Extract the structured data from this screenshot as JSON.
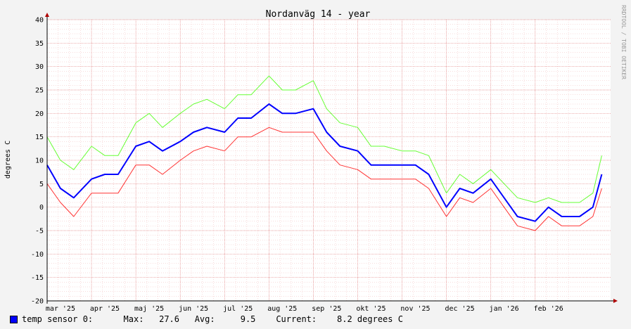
{
  "chart_data": {
    "type": "line",
    "title": "Nordanväg 14 - year",
    "ylabel": "degrees C",
    "watermark": "RRDTOOL / TOBI OETIKER",
    "ylim": [
      -20,
      40
    ],
    "y_ticks": [
      -20,
      -15,
      -10,
      -5,
      0,
      5,
      10,
      15,
      20,
      25,
      30,
      35,
      40
    ],
    "x_ticks": [
      "mar '25",
      "apr '25",
      "maj '25",
      "jun '25",
      "jul '25",
      "aug '25",
      "sep '25",
      "okt '25",
      "nov '25",
      "dec '25",
      "jan '26",
      "feb '26"
    ],
    "xlim": [
      0,
      12.7
    ],
    "grid": true,
    "colors": {
      "min": "#ff3333",
      "avg": "#0000ff",
      "max": "#66ff33",
      "grid_minor": "#f0b8b8",
      "grid_major": "#e08080"
    },
    "series": [
      {
        "key": "max",
        "x": [
          0,
          0.3,
          0.6,
          1.0,
          1.3,
          1.6,
          2.0,
          2.3,
          2.6,
          3.0,
          3.3,
          3.6,
          4.0,
          4.3,
          4.6,
          5.0,
          5.3,
          5.6,
          6.0,
          6.3,
          6.6,
          7.0,
          7.3,
          7.6,
          8.0,
          8.3,
          8.6,
          9.0,
          9.3,
          9.6,
          10.0,
          10.3,
          10.6,
          11.0,
          11.3,
          11.6,
          12.0,
          12.3,
          12.5
        ],
        "values": [
          15,
          10,
          8,
          13,
          11,
          11,
          18,
          20,
          17,
          20,
          22,
          23,
          21,
          24,
          24,
          28,
          25,
          25,
          27,
          21,
          18,
          17,
          13,
          13,
          12,
          12,
          11,
          3,
          7,
          5,
          8,
          5,
          2,
          1,
          2,
          1,
          1,
          3,
          11
        ]
      },
      {
        "key": "avg",
        "x": [
          0,
          0.3,
          0.6,
          1.0,
          1.3,
          1.6,
          2.0,
          2.3,
          2.6,
          3.0,
          3.3,
          3.6,
          4.0,
          4.3,
          4.6,
          5.0,
          5.3,
          5.6,
          6.0,
          6.3,
          6.6,
          7.0,
          7.3,
          7.6,
          8.0,
          8.3,
          8.6,
          9.0,
          9.3,
          9.6,
          10.0,
          10.3,
          10.6,
          11.0,
          11.3,
          11.6,
          12.0,
          12.3,
          12.5
        ],
        "values": [
          9,
          4,
          2,
          6,
          7,
          7,
          13,
          14,
          12,
          14,
          16,
          17,
          16,
          19,
          19,
          22,
          20,
          20,
          21,
          16,
          13,
          12,
          9,
          9,
          9,
          9,
          7,
          0,
          4,
          3,
          6,
          2,
          -2,
          -3,
          0,
          -2,
          -2,
          0,
          7
        ]
      },
      {
        "key": "min",
        "x": [
          0,
          0.3,
          0.6,
          1.0,
          1.3,
          1.6,
          2.0,
          2.3,
          2.6,
          3.0,
          3.3,
          3.6,
          4.0,
          4.3,
          4.6,
          5.0,
          5.3,
          5.6,
          6.0,
          6.3,
          6.6,
          7.0,
          7.3,
          7.6,
          8.0,
          8.3,
          8.6,
          9.0,
          9.3,
          9.6,
          10.0,
          10.3,
          10.6,
          11.0,
          11.3,
          11.6,
          12.0,
          12.3,
          12.5
        ],
        "values": [
          5,
          1,
          -2,
          3,
          3,
          3,
          9,
          9,
          7,
          10,
          12,
          13,
          12,
          15,
          15,
          17,
          16,
          16,
          16,
          12,
          9,
          8,
          6,
          6,
          6,
          6,
          4,
          -2,
          2,
          1,
          4,
          0,
          -4,
          -5,
          -2,
          -4,
          -4,
          -2,
          4
        ]
      }
    ]
  },
  "legend": {
    "name": "temp sensor 0:",
    "max_label": "Max:",
    "max_value": "27.6",
    "avg_label": "Avg:",
    "avg_value": "9.5",
    "cur_label": "Current:",
    "cur_value": "8.2 degrees C"
  }
}
